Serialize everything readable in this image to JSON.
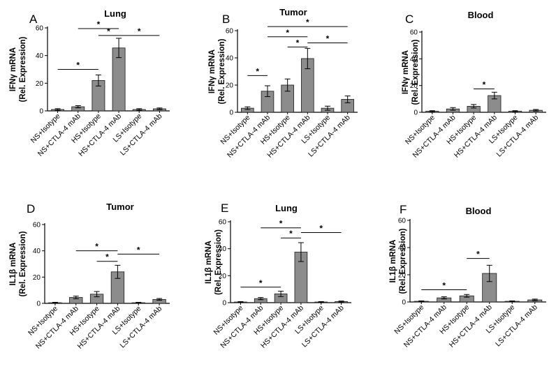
{
  "figure": {
    "panels": [
      {
        "letter": "A",
        "title": "Lung",
        "ylabel_line1": "IFNγ mRNA",
        "ylabel_line2": "(Rel. Expression)"
      },
      {
        "letter": "B",
        "title": "Tumor",
        "ylabel_line1": "IFNγ mRNA",
        "ylabel_line2": "(Rel. Expression)"
      },
      {
        "letter": "C",
        "title": "Blood",
        "ylabel_line1": "IFNγ mRNA",
        "ylabel_line2": "(Rel. Expression)"
      },
      {
        "letter": "D",
        "title": "Tumor",
        "ylabel_line1": "IL1β mRNA",
        "ylabel_line2": "(Rel. Expression)"
      },
      {
        "letter": "E",
        "title": "Lung",
        "ylabel_line1": "IL1β mRNA",
        "ylabel_line2": "(Rel. Expression)"
      },
      {
        "letter": "F",
        "title": "Blood",
        "ylabel_line1": "IL1β mRNA",
        "ylabel_line2": "(Rel. Expression)"
      }
    ],
    "colors": {
      "bar_fill": "#8c8c8c",
      "bar_stroke": "#1a1a1a",
      "axis": "#000000"
    }
  },
  "chart_data": [
    {
      "type": "bar",
      "panel": "A",
      "title": "Lung",
      "ylabel": "IFNγ mRNA (Rel. Expression)",
      "categories": [
        "NS+Isotype",
        "NS+CTLA-4 mAb",
        "HS+Isotype",
        "HS+CTLA-4 mAb",
        "LS+Isotype",
        "LS+CTLA-4 mAb"
      ],
      "values": [
        1,
        3,
        22,
        45.5,
        1,
        1.5
      ],
      "errors": [
        0.6,
        0.8,
        4,
        7,
        0.6,
        0.6
      ],
      "ylim": [
        0,
        60
      ],
      "yticks": [
        0,
        20,
        40,
        60
      ],
      "significance": [
        {
          "from": 0,
          "to": 2,
          "y": 30,
          "label": "*"
        },
        {
          "from": 2,
          "to": 3,
          "y": 54.5,
          "label": "*"
        },
        {
          "from": 1,
          "to": 3,
          "y": 59.5,
          "label": "*"
        },
        {
          "from": 3,
          "to": 5,
          "y": 54.5,
          "label": "*"
        }
      ]
    },
    {
      "type": "bar",
      "panel": "B",
      "title": "Tumor",
      "ylabel": "IFNγ mRNA (Rel. Expression)",
      "categories": [
        "NS+Isotype",
        "NS+CTLA-4 mAb",
        "HS+Isotype",
        "HS+CTLA-4 mAb",
        "LS+Isotype",
        "LS+CTLA-4 mAb"
      ],
      "values": [
        3,
        15.5,
        20,
        39.5,
        3,
        9.5
      ],
      "errors": [
        1,
        4,
        4.5,
        7.5,
        1.5,
        2.5
      ],
      "ylim": [
        0,
        60
      ],
      "yticks": [
        0,
        20,
        40,
        60
      ],
      "significance": [
        {
          "from": 0,
          "to": 1,
          "y": 27,
          "label": "*"
        },
        {
          "from": 2,
          "to": 3,
          "y": 48,
          "label": "*"
        },
        {
          "from": 1,
          "to": 3,
          "y": 55.5,
          "label": "*"
        },
        {
          "from": 3,
          "to": 5,
          "y": 51,
          "label": "*"
        },
        {
          "from": 1,
          "to": 5,
          "y": 63,
          "label": "*"
        }
      ]
    },
    {
      "type": "bar",
      "panel": "C",
      "title": "Blood",
      "ylabel": "IFNγ mRNA (Rel. Expression)",
      "categories": [
        "NS+Isotype",
        "NS+CTLA-4 mAb",
        "HS+Isotype",
        "HS+CTLA-4 mAb",
        "LS+Isotype",
        "LS+CTLA-4 mAb"
      ],
      "values": [
        0.8,
        2.5,
        4.5,
        12.5,
        0.8,
        1.5
      ],
      "errors": [
        0.4,
        1,
        1.3,
        2.5,
        0.4,
        0.6
      ],
      "ylim": [
        0,
        60
      ],
      "yticks": [
        0,
        20,
        40,
        60
      ],
      "significance": [
        {
          "from": 2,
          "to": 3,
          "y": 17.5,
          "label": "*"
        }
      ]
    },
    {
      "type": "bar",
      "panel": "D",
      "title": "Tumor",
      "ylabel": "IL1β mRNA (Rel. Expression)",
      "categories": [
        "NS+Isotype",
        "NS+CTLA-4 mAb",
        "HS+Isotype",
        "HS+CTLA-4 mAb",
        "LS+Isotype",
        "LS+CTLA-4 mAb"
      ],
      "values": [
        0.5,
        4.5,
        7,
        24,
        0.5,
        3
      ],
      "errors": [
        0.3,
        1,
        2,
        5,
        0.3,
        0.7
      ],
      "ylim": [
        0,
        60
      ],
      "yticks": [
        0,
        20,
        40,
        60
      ],
      "significance": [
        {
          "from": 2,
          "to": 3,
          "y": 32,
          "label": "*"
        },
        {
          "from": 1,
          "to": 3,
          "y": 40,
          "label": "*"
        },
        {
          "from": 3,
          "to": 5,
          "y": 37.5,
          "label": "*"
        }
      ]
    },
    {
      "type": "bar",
      "panel": "E",
      "title": "Lung",
      "ylabel": "IL1β mRNA (Rel. Expression)",
      "categories": [
        "NS+Isotype",
        "NS+CTLA-4 mAb",
        "HS+Isotype",
        "HS+CTLA-4 mAb",
        "LS+Isotype",
        "LS+CTLA-4 mAb"
      ],
      "values": [
        0.5,
        3,
        6.5,
        37.5,
        0.5,
        0.8
      ],
      "errors": [
        0.3,
        0.8,
        2,
        7,
        0.3,
        0.4
      ],
      "ylim": [
        0,
        60
      ],
      "yticks": [
        0,
        20,
        40,
        60
      ],
      "significance": [
        {
          "from": 0,
          "to": 2,
          "y": 11.5,
          "label": "*"
        },
        {
          "from": 2,
          "to": 3,
          "y": 48,
          "label": "*"
        },
        {
          "from": 1,
          "to": 3,
          "y": 55.5,
          "label": "*"
        },
        {
          "from": 3,
          "to": 5,
          "y": 52,
          "label": "*"
        }
      ]
    },
    {
      "type": "bar",
      "panel": "F",
      "title": "Blood",
      "ylabel": "IL1β mRNA (Rel. Expression)",
      "categories": [
        "NS+Isotype",
        "NS+CTLA-4 mAb",
        "HS+Isotype",
        "HS+CTLA-4 mAb",
        "LS+Isotype",
        "LS+CTLA-4 mAb"
      ],
      "values": [
        0.5,
        3,
        4.5,
        21,
        0.5,
        1.5
      ],
      "errors": [
        0.3,
        0.8,
        1,
        6,
        0.3,
        0.6
      ],
      "ylim": [
        0,
        60
      ],
      "yticks": [
        0,
        20,
        40,
        60
      ],
      "significance": [
        {
          "from": 0,
          "to": 2,
          "y": 9,
          "label": "*"
        },
        {
          "from": 2,
          "to": 3,
          "y": 32,
          "label": "*"
        }
      ]
    }
  ]
}
